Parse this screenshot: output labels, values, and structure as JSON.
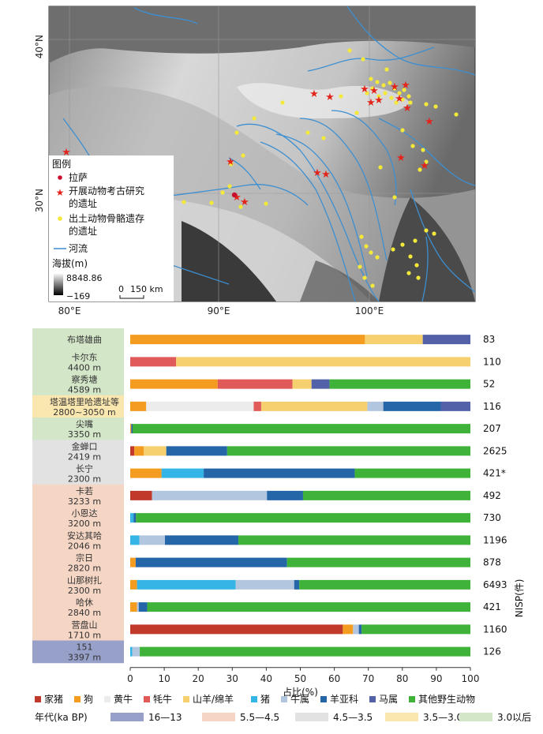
{
  "map": {
    "lat_labels": [
      "40°N",
      "30°N"
    ],
    "lon_labels": [
      "80°E",
      "90°E",
      "100°E"
    ],
    "legend_title": "图例",
    "legend_items": {
      "lhasa": "拉萨",
      "zooarch_line1": "开展动物考古研究",
      "zooarch_line2": "的遗址",
      "bones_line1": "出土动物骨骼遗存",
      "bones_line2": "的遗址",
      "river": "河流"
    },
    "elev_title": "海拔(m)",
    "elev_max": "8848.86",
    "elev_min": "−169",
    "scale_zero": "0",
    "scale_label": "150 km",
    "colors": {
      "star": "#e3241b",
      "dot": "#f4e93a",
      "river": "#3d8fd1",
      "lhasa": "#c8102e"
    }
  },
  "chart_data": {
    "type": "bar",
    "stacked": true,
    "orientation": "horizontal",
    "xlabel": "占比(%)",
    "ylabel_right": "NISP(件)",
    "xlim": [
      0,
      100
    ],
    "xticks": [
      0,
      10,
      20,
      30,
      40,
      50,
      60,
      70,
      80,
      90,
      100
    ],
    "series": [
      {
        "name": "家猪",
        "color": "#c0392b"
      },
      {
        "name": "狗",
        "color": "#f39c1f"
      },
      {
        "name": "黄牛",
        "color": "#ececec"
      },
      {
        "name": "牦牛",
        "color": "#e05a5a"
      },
      {
        "name": "山羊/绵羊",
        "color": "#f6d06f"
      },
      {
        "name": "猪",
        "color": "#35b5e5"
      },
      {
        "name": "牛属",
        "color": "#b3c6e0"
      },
      {
        "name": "羊亚科",
        "color": "#2466a8"
      },
      {
        "name": "马属",
        "color": "#5362a8"
      },
      {
        "name": "其他野生动物",
        "color": "#3fb23a"
      }
    ],
    "sites": [
      {
        "name": "布塔雄曲",
        "elev": "",
        "period": "3.0以后",
        "nisp": "83",
        "values": [
          0,
          69,
          0,
          0,
          17,
          0,
          0,
          0,
          14,
          0
        ]
      },
      {
        "name": "卡尔东",
        "elev": "4400 m",
        "period": "3.0以后",
        "nisp": "110",
        "values": [
          0,
          0,
          0,
          13.5,
          86.5,
          0,
          0,
          0,
          0,
          0
        ]
      },
      {
        "name": "察秀塘",
        "elev": "4589 m",
        "period": "3.0以后",
        "nisp": "52",
        "values": [
          0,
          25.7,
          0,
          22,
          5.6,
          0,
          0,
          0,
          5.3,
          41.4
        ]
      },
      {
        "name": "塔温塔里哈遗址等",
        "elev": "2800~3050 m",
        "period": "3.5—3.0",
        "nisp": "116",
        "values": [
          0,
          4.7,
          31.6,
          2.2,
          31.2,
          0,
          4.7,
          16.9,
          8.7,
          0
        ]
      },
      {
        "name": "尖嘴",
        "elev": "3350 m",
        "period": "3.0以后",
        "nisp": "207",
        "values": [
          0,
          0.3,
          0,
          0,
          0,
          0,
          0,
          0.4,
          0,
          99.3
        ]
      },
      {
        "name": "金蝉口",
        "elev": "2419 m",
        "period": "4.5—3.5",
        "nisp": "2625",
        "values": [
          1.2,
          2.8,
          0,
          0,
          6.6,
          0,
          0,
          17.9,
          0,
          71.5
        ]
      },
      {
        "name": "长宁",
        "elev": "2300 m",
        "period": "4.5—3.5",
        "nisp": "421*",
        "values": [
          0,
          9.2,
          0,
          0,
          0,
          12.4,
          0,
          44.4,
          0,
          34
        ]
      },
      {
        "name": "卡若",
        "elev": "3233 m",
        "period": "5.5—4.5",
        "nisp": "492",
        "values": [
          6.4,
          0,
          0,
          0,
          0,
          0,
          33.8,
          10.6,
          0,
          49.2
        ]
      },
      {
        "name": "小恩达",
        "elev": "3200 m",
        "period": "5.5—4.5",
        "nisp": "730",
        "values": [
          0,
          0,
          0,
          0,
          0,
          1,
          0,
          0.7,
          0,
          98.3
        ]
      },
      {
        "name": "安达其哈",
        "elev": "2046 m",
        "period": "5.5—4.5",
        "nisp": "1196",
        "values": [
          0,
          0,
          0,
          0,
          0,
          2.7,
          7.5,
          21.6,
          0,
          68.2
        ]
      },
      {
        "name": "宗日",
        "elev": "2820 m",
        "period": "5.5—4.5",
        "nisp": "878",
        "values": [
          0,
          1.6,
          0,
          0,
          0,
          0,
          0,
          44.5,
          0,
          53.9
        ]
      },
      {
        "name": "山那树扎",
        "elev": "2300 m",
        "period": "5.5—4.5",
        "nisp": "6493",
        "values": [
          0,
          2,
          0,
          0,
          0,
          29,
          17.2,
          1.5,
          0,
          50.3
        ]
      },
      {
        "name": "哈休",
        "elev": "2840 m",
        "period": "5.5—4.5",
        "nisp": "421",
        "values": [
          0,
          2,
          0,
          0,
          0,
          0,
          0.5,
          2.5,
          0,
          95
        ]
      },
      {
        "name": "营盘山",
        "elev": "1710 m",
        "period": "5.5—4.5",
        "nisp": "1160",
        "values": [
          62.5,
          3,
          0,
          0,
          0,
          0,
          1.7,
          0.8,
          0,
          32
        ]
      },
      {
        "name": "151",
        "elev": "3397 m",
        "period": "16—13",
        "nisp": "126",
        "values": [
          0,
          0,
          0,
          0,
          0,
          0.6,
          2.2,
          0,
          0,
          97.2
        ]
      }
    ],
    "periods": [
      {
        "name": "16—13",
        "color": "#97a0c9"
      },
      {
        "name": "5.5—4.5",
        "color": "#f5d6c4"
      },
      {
        "name": "4.5—3.5",
        "color": "#e2e2e2"
      },
      {
        "name": "3.5—3.0",
        "color": "#fae7b0"
      },
      {
        "name": "3.0以后",
        "color": "#d3e6c8"
      }
    ],
    "period_legend_label": "年代(ka BP)"
  }
}
